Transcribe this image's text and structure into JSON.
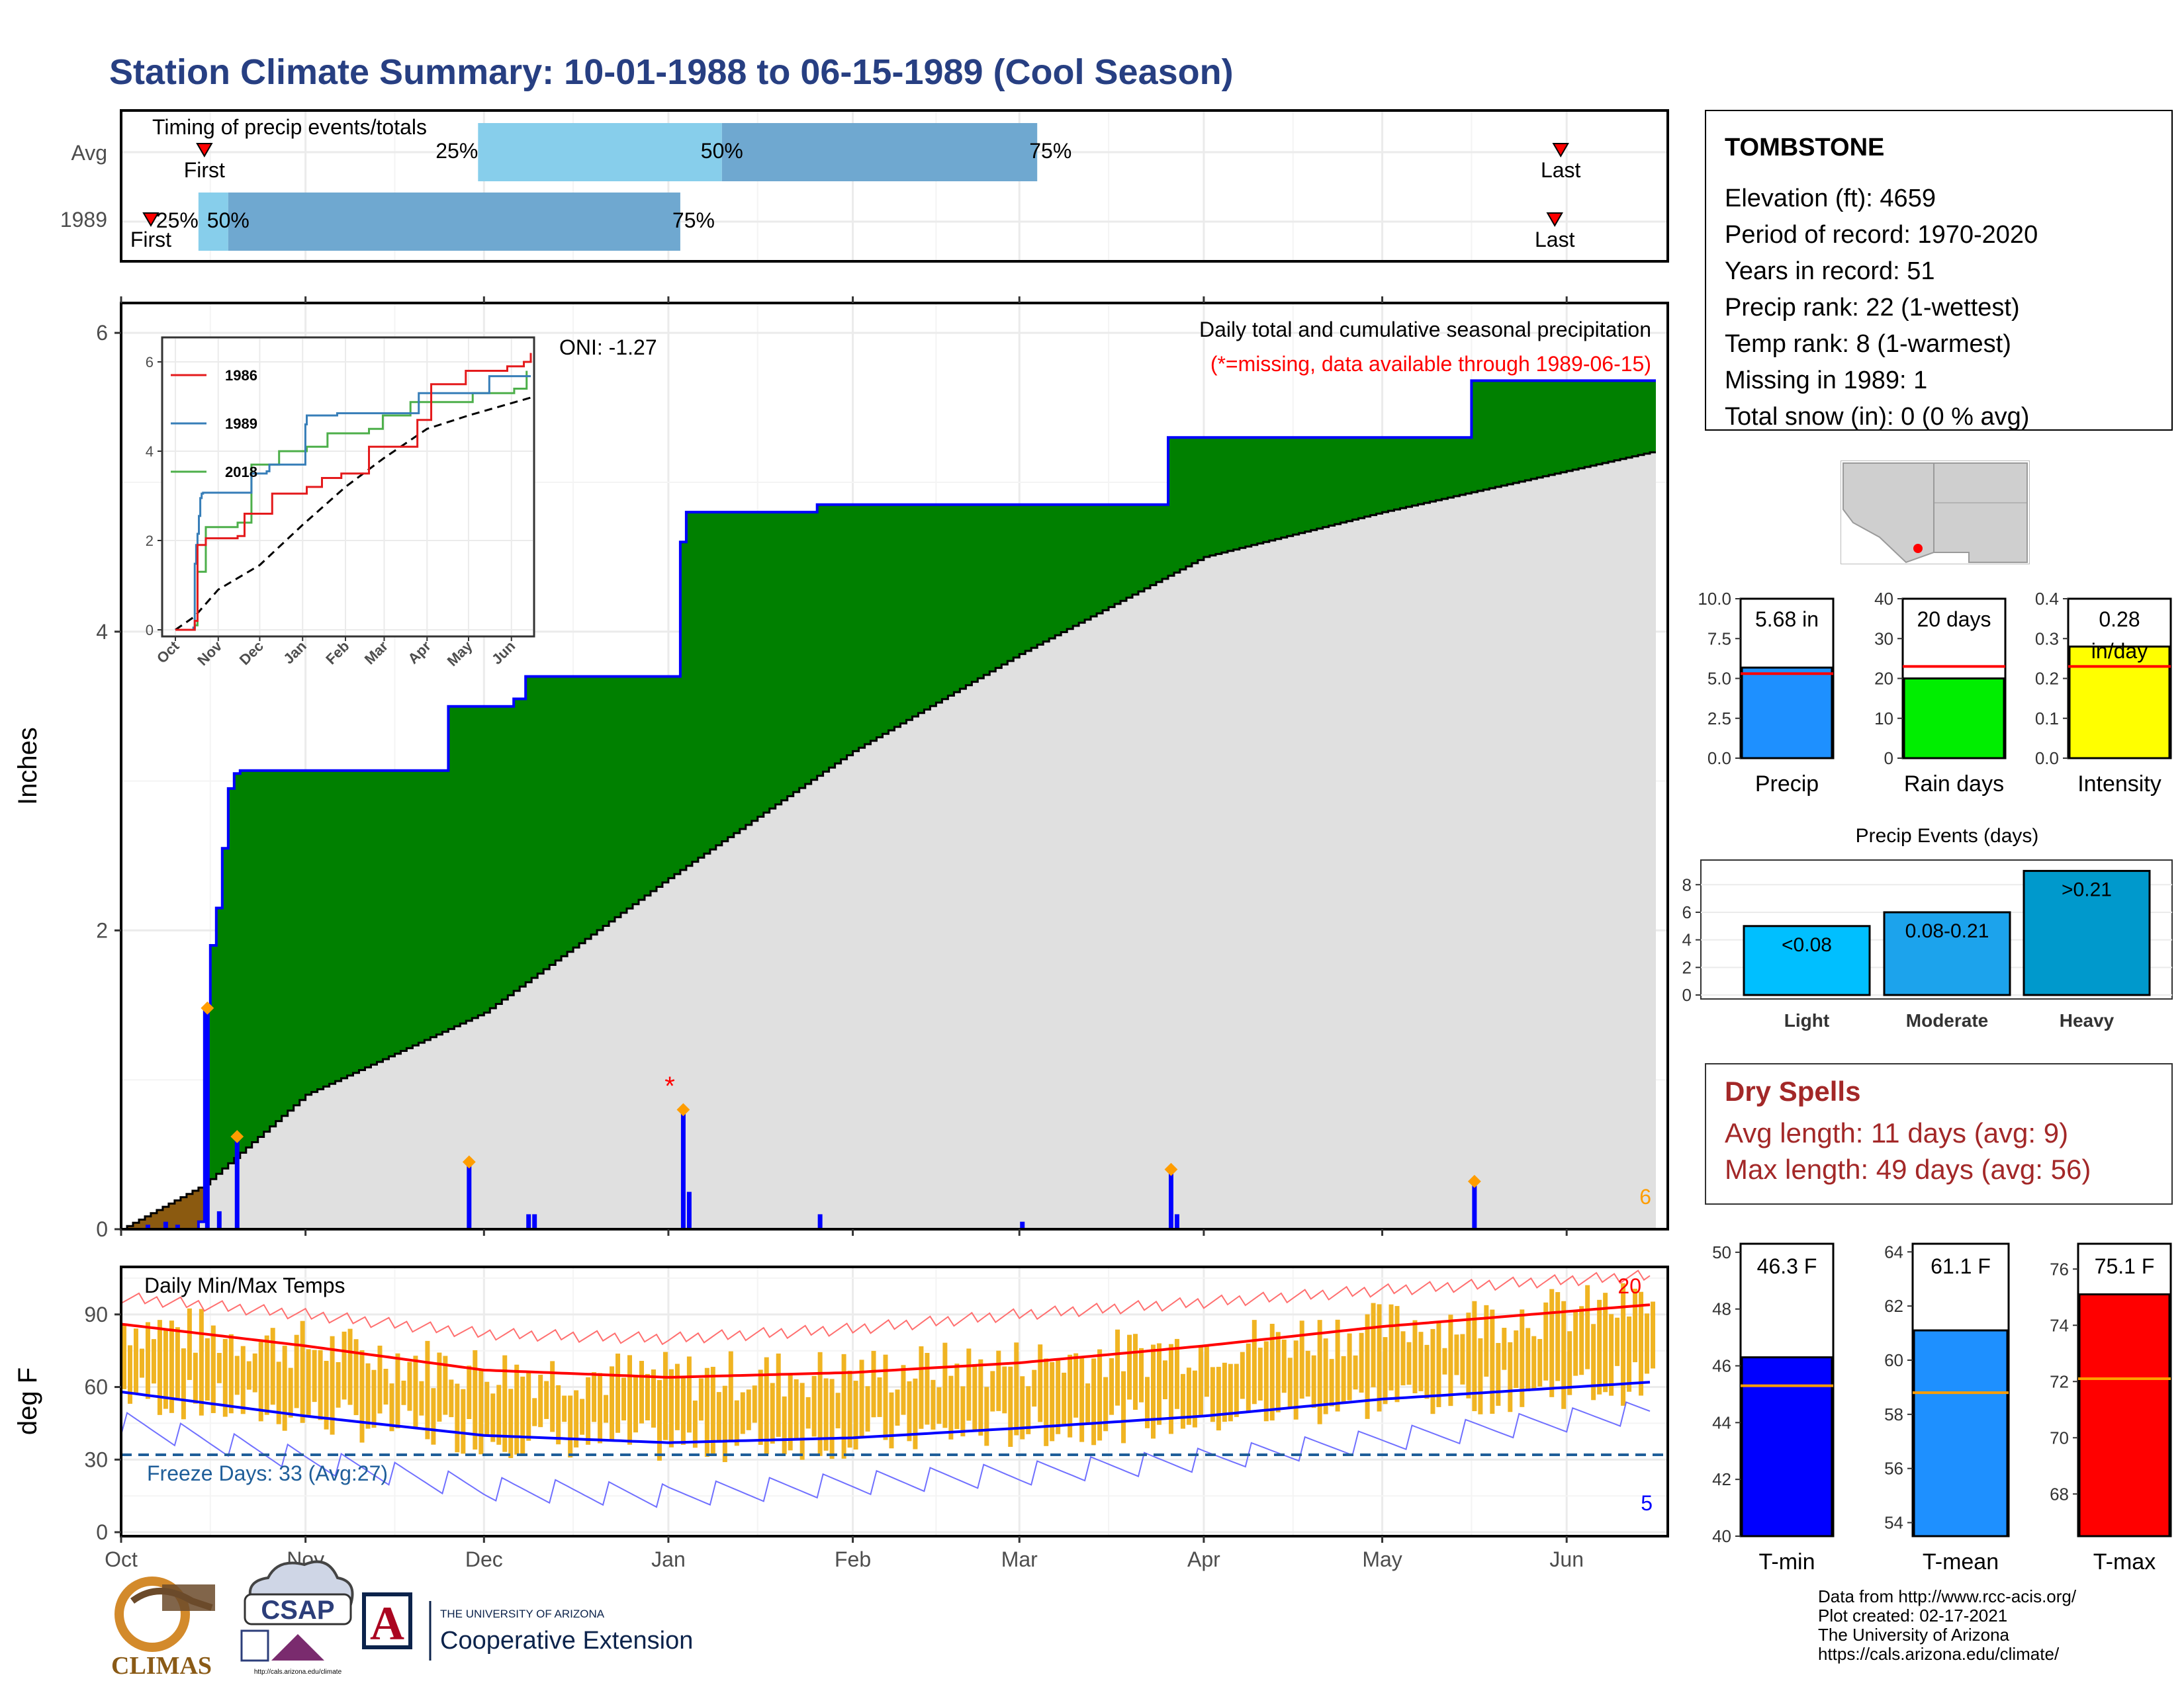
{
  "title": "Station Climate Summary: 10-01-1988 to 06-15-1989 (Cool Season)",
  "colors": {
    "title": "#273f82",
    "accent_red": "#a32828",
    "cumulative_fill": "#008000",
    "avg_fill": "#e0e0e0",
    "deficit_fill": "#8b5a10",
    "daily_bar": "#0000ff",
    "temp_bar": "#f0b422",
    "q_light": "#87ceeb",
    "q_dark": "#6fa8d0"
  },
  "timing_panel": {
    "title": "Timing of precip events/totals",
    "rows": [
      {
        "label": "Avg",
        "first_label": "First",
        "last_label": "Last",
        "q25": "25%",
        "q50": "50%",
        "q75": "75%"
      },
      {
        "label": "1989",
        "first_label": "First",
        "last_label": "Last",
        "q25": "25%",
        "q50": "50%",
        "q75": "75%"
      }
    ]
  },
  "precip_panel": {
    "ylabel": "Inches",
    "title": "Daily total and cumulative seasonal precipitation",
    "subtitle": "(*=missing, data available through 1989-06-15)",
    "ticks_y": [
      "0",
      "2",
      "4",
      "6"
    ],
    "count_label": "6",
    "missing_marker": "*",
    "oni": "ONI: -1.27",
    "inset": {
      "legend": [
        "1986",
        "1989",
        "2018"
      ],
      "colors": [
        "#e41a1c",
        "#377eb8",
        "#4daf4a"
      ],
      "ticks_y": [
        "0",
        "2",
        "4",
        "6"
      ],
      "months": [
        "Oct",
        "Nov",
        "Dec",
        "Jan",
        "Feb",
        "Mar",
        "Apr",
        "May",
        "Jun"
      ]
    }
  },
  "temp_panel": {
    "ylabel": "deg F",
    "title": "Daily Min/Max Temps",
    "ticks_y": [
      "0",
      "30",
      "60",
      "90"
    ],
    "freeze_label": "Freeze Days: 33 (Avg:27)",
    "hot_count": "20",
    "cold_count": "5",
    "months": [
      "Oct",
      "Nov",
      "Dec",
      "Jan",
      "Feb",
      "Mar",
      "Apr",
      "May",
      "Jun"
    ]
  },
  "station": {
    "name": "TOMBSTONE",
    "lines": [
      "Elevation (ft): 4659",
      "Period of record: 1970-2020",
      "Years in record: 51",
      "Precip rank: 22 (1-wettest)",
      "Temp rank: 8 (1-warmest)",
      "Missing in 1989: 1",
      "Total snow (in): 0 (0 % avg)"
    ]
  },
  "precip_bars": [
    {
      "name": "Precip",
      "value_label": "5.68 in",
      "ticks": [
        "0.0",
        "2.5",
        "5.0",
        "7.5",
        "10.0"
      ],
      "color": "#1e90ff"
    },
    {
      "name": "Rain days",
      "value_label": "20 days",
      "ticks": [
        "0",
        "10",
        "20",
        "30",
        "40"
      ],
      "color": "#00ee00"
    },
    {
      "name": "Intensity",
      "value_label": "0.28",
      "value_label2": "in/day",
      "ticks": [
        "0.0",
        "0.1",
        "0.2",
        "0.3",
        "0.4"
      ],
      "color": "#ffff00"
    }
  ],
  "events": {
    "title": "Precip Events (days)",
    "ticks": [
      "0",
      "2",
      "4",
      "6",
      "8"
    ],
    "categories": [
      "Light",
      "Moderate",
      "Heavy"
    ],
    "labels": [
      "<0.08",
      "0.08-0.21",
      ">0.21"
    ],
    "colors": [
      "#00bfff",
      "#1ca3ec",
      "#0099cc"
    ]
  },
  "dry_spells": {
    "title": "Dry Spells",
    "avg": "Avg length: 11 days (avg: 9)",
    "max": "Max length: 49 days (avg: 56)"
  },
  "temp_bars": [
    {
      "name": "T-min",
      "value_label": "46.3 F",
      "ticks": [
        "40",
        "42",
        "44",
        "46",
        "48",
        "50"
      ],
      "color": "#0000ff"
    },
    {
      "name": "T-mean",
      "value_label": "61.1 F",
      "ticks": [
        "54",
        "56",
        "58",
        "60",
        "62",
        "64"
      ],
      "color": "#1e90ff"
    },
    {
      "name": "T-max",
      "value_label": "75.1 F",
      "ticks": [
        "68",
        "70",
        "72",
        "74",
        "76"
      ],
      "color": "#ff0000"
    }
  ],
  "credits": [
    "Data from http://www.rcc-acis.org/",
    "Plot created: 02-17-2021",
    "The University of Arizona",
    "https://cals.arizona.edu/climate/"
  ],
  "logos": {
    "climas": "CLIMAS",
    "csap": "CSAP",
    "csap_url": "http://cals.arizona.edu/climate",
    "ua_top": "THE UNIVERSITY OF ARIZONA",
    "ua_bottom": "Cooperative Extension",
    "ua_letter": "A"
  },
  "chart_data": [
    {
      "type": "bar",
      "title": "Timing of precip events/totals",
      "categories": [
        "Avg",
        "1989"
      ],
      "series": [
        {
          "name": "Avg",
          "first": "1988-10-15",
          "q25": "1988-11-30",
          "q50": "1989-01-10",
          "q75": "1989-03-04",
          "last": "1989-05-31"
        },
        {
          "name": "1989",
          "first": "1988-10-06",
          "q25": "1988-10-14",
          "q50": "1988-10-19",
          "q75": "1989-01-03",
          "last": "1989-05-30"
        }
      ]
    },
    {
      "type": "area",
      "title": "Daily total and cumulative seasonal precipitation",
      "ylabel": "Inches",
      "ylim": [
        0,
        6.2
      ],
      "series": [
        {
          "name": "Cumulative precipitation",
          "x": [
            "1988-10-01",
            "1988-10-14",
            "1988-10-15",
            "1988-10-16",
            "1988-10-17",
            "1988-10-18",
            "1988-10-19",
            "1988-10-20",
            "1988-10-21",
            "1988-11-01",
            "1988-11-25",
            "1988-12-06",
            "1988-12-08",
            "1989-01-03",
            "1989-01-04",
            "1989-01-26",
            "1989-03-01",
            "1989-03-26",
            "1989-05-16",
            "1989-06-15"
          ],
          "values": [
            0.0,
            0.05,
            1.48,
            1.9,
            2.15,
            2.55,
            2.95,
            3.05,
            3.07,
            3.07,
            3.5,
            3.55,
            3.7,
            4.6,
            4.8,
            4.85,
            4.85,
            5.3,
            5.68,
            5.68
          ]
        },
        {
          "name": "Average cumulative",
          "x": [
            "1988-10-01",
            "1988-10-15",
            "1988-11-01",
            "1988-12-01",
            "1989-01-01",
            "1989-02-01",
            "1989-03-01",
            "1989-04-01",
            "1989-05-01",
            "1989-06-15"
          ],
          "values": [
            0.0,
            0.3,
            0.9,
            1.45,
            2.35,
            3.2,
            3.85,
            4.5,
            4.8,
            5.2
          ]
        },
        {
          "name": "Daily precipitation",
          "x": [
            "1988-10-05",
            "1988-10-08",
            "1988-10-10",
            "1988-10-15",
            "1988-10-17",
            "1988-10-20",
            "1988-11-28",
            "1988-12-08",
            "1988-12-09",
            "1989-01-03",
            "1989-01-04",
            "1989-01-26",
            "1989-03-01",
            "1989-03-26",
            "1989-03-27",
            "1989-05-16"
          ],
          "values": [
            0.03,
            0.05,
            0.03,
            1.48,
            0.12,
            0.62,
            0.45,
            0.1,
            0.1,
            0.8,
            0.25,
            0.1,
            0.05,
            0.4,
            0.1,
            0.32
          ]
        }
      ]
    },
    {
      "type": "line",
      "title": "Daily Min/Max Temps",
      "ylabel": "deg F",
      "ylim": [
        0,
        110
      ],
      "x": [
        "1988-10-01",
        "1988-11-01",
        "1988-12-01",
        "1989-01-01",
        "1989-02-01",
        "1989-03-01",
        "1989-04-01",
        "1989-05-01",
        "1989-06-15"
      ],
      "series": [
        {
          "name": "Average max",
          "values": [
            86,
            77,
            67,
            64,
            66,
            70,
            77,
            85,
            94
          ]
        },
        {
          "name": "Average min",
          "values": [
            58,
            48,
            40,
            37,
            39,
            43,
            48,
            55,
            62
          ]
        },
        {
          "name": "Record max",
          "values": [
            97,
            90,
            82,
            80,
            84,
            90,
            95,
            100,
            106
          ]
        },
        {
          "name": "Record min",
          "values": [
            45,
            30,
            18,
            15,
            20,
            24,
            30,
            38,
            50
          ]
        }
      ]
    },
    {
      "type": "bar",
      "categories": [
        "Precip",
        "Rain days",
        "Intensity"
      ],
      "series": [
        {
          "name": "1989",
          "values": [
            5.68,
            20,
            0.28
          ]
        },
        {
          "name": "Average",
          "values": [
            5.3,
            23,
            0.23
          ]
        }
      ]
    },
    {
      "type": "bar",
      "title": "Precip Events (days)",
      "categories": [
        "Light",
        "Moderate",
        "Heavy"
      ],
      "values": [
        5,
        6,
        9
      ],
      "ylim": [
        0,
        9
      ]
    },
    {
      "type": "bar",
      "categories": [
        "T-min",
        "T-mean",
        "T-max"
      ],
      "series": [
        {
          "name": "1989",
          "values": [
            46.3,
            61.1,
            75.1
          ]
        },
        {
          "name": "Average",
          "values": [
            45.3,
            58.8,
            72.1
          ]
        }
      ]
    }
  ]
}
